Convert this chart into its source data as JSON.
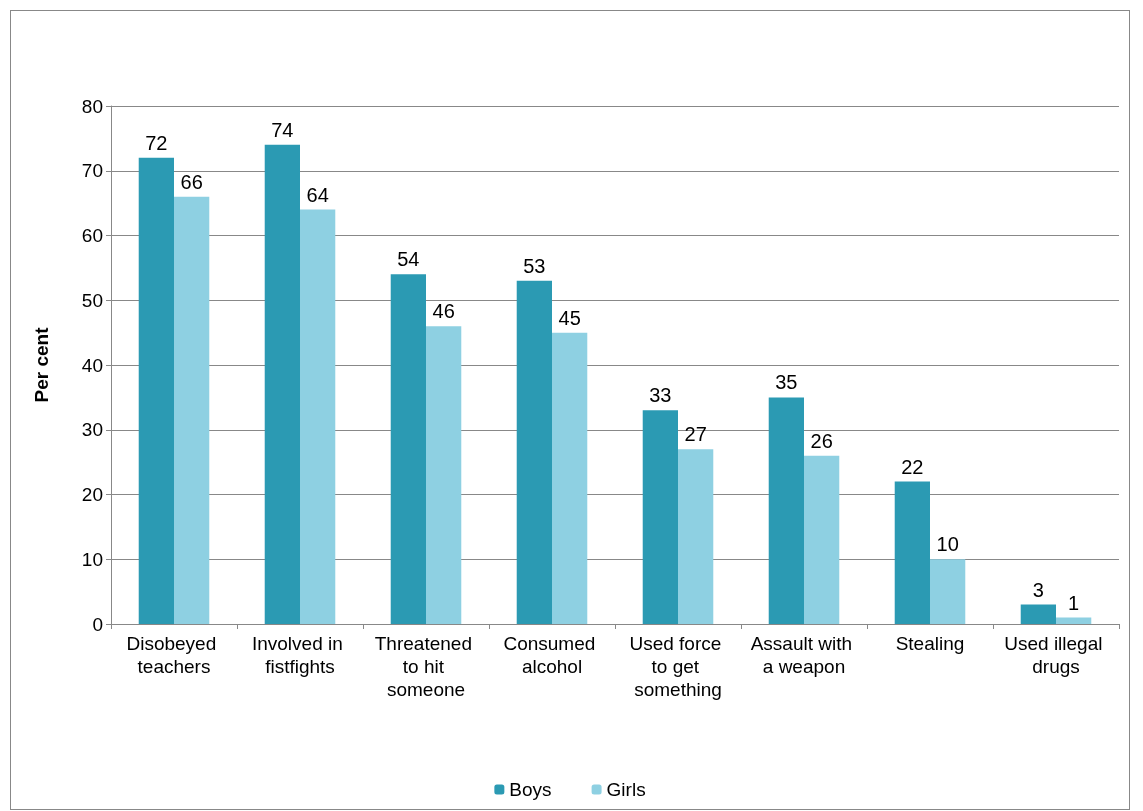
{
  "chart_data": {
    "type": "bar",
    "ylabel": "Per cent",
    "categories": [
      "Disobeyed teachers",
      "Involved in fistfights",
      "Threatened to hit someone",
      "Consumed alcohol",
      "Used force to get something",
      "Assault with a weapon",
      "Stealing",
      "Used illegal drugs"
    ],
    "series": [
      {
        "name": "Boys",
        "color": "#2b9ab3",
        "values": [
          72,
          74,
          54,
          53,
          33,
          35,
          22,
          3
        ]
      },
      {
        "name": "Girls",
        "color": "#8ed0e2",
        "values": [
          66,
          64,
          46,
          45,
          27,
          26,
          10,
          1
        ]
      }
    ],
    "ylim": [
      0,
      80
    ],
    "yticks": [
      0,
      10,
      20,
      30,
      40,
      50,
      60,
      70,
      80
    ],
    "grid": "y",
    "legend": "bottom",
    "data_labels": true
  }
}
